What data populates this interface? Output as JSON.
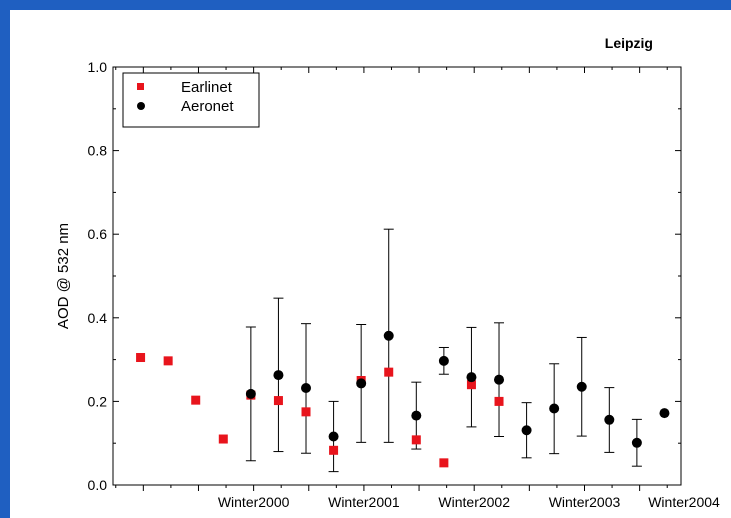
{
  "background_color": "#1f5fc1",
  "chart_data": {
    "type": "scatter",
    "title": "Leipzig",
    "xlabel": "",
    "ylabel": "AOD @ 532 nm",
    "xlim": [
      0,
      10.3
    ],
    "ylim": [
      0.0,
      1.0
    ],
    "grid": false,
    "legend_position": "top-left",
    "x_ticks": [
      {
        "x": 2.55,
        "label": "Winter2000"
      },
      {
        "x": 4.55,
        "label": "Winter2001"
      },
      {
        "x": 6.55,
        "label": "Winter2002"
      },
      {
        "x": 8.55,
        "label": "Winter2003"
      },
      {
        "x": 10.55,
        "label": "Winter2004"
      }
    ],
    "y_ticks": [
      {
        "value": 0.0,
        "label": "0.0"
      },
      {
        "value": 0.2,
        "label": "0.2"
      },
      {
        "value": 0.4,
        "label": "0.4"
      },
      {
        "value": 0.6,
        "label": "0.6"
      },
      {
        "value": 0.8,
        "label": "0.8"
      },
      {
        "value": 1.0,
        "label": "1.0"
      }
    ],
    "series": [
      {
        "name": "Earlinet",
        "marker": "square",
        "color": "#e8141c",
        "points": [
          {
            "x": 0.5,
            "y": 0.305
          },
          {
            "x": 1.0,
            "y": 0.297
          },
          {
            "x": 1.5,
            "y": 0.203
          },
          {
            "x": 2.0,
            "y": 0.11
          },
          {
            "x": 2.5,
            "y": 0.215
          },
          {
            "x": 3.0,
            "y": 0.202
          },
          {
            "x": 3.5,
            "y": 0.175
          },
          {
            "x": 4.0,
            "y": 0.083
          },
          {
            "x": 4.5,
            "y": 0.25
          },
          {
            "x": 5.0,
            "y": 0.27
          },
          {
            "x": 5.5,
            "y": 0.108
          },
          {
            "x": 6.0,
            "y": 0.053
          },
          {
            "x": 6.5,
            "y": 0.24
          },
          {
            "x": 7.0,
            "y": 0.2
          }
        ]
      },
      {
        "name": "Aeronet",
        "marker": "circle",
        "color": "#000000",
        "points": [
          {
            "x": 2.5,
            "y": 0.218,
            "err_low": 0.058,
            "err_high": 0.378
          },
          {
            "x": 3.0,
            "y": 0.263,
            "err_low": 0.08,
            "err_high": 0.447
          },
          {
            "x": 3.5,
            "y": 0.232,
            "err_low": 0.076,
            "err_high": 0.386
          },
          {
            "x": 4.0,
            "y": 0.116,
            "err_low": 0.032,
            "err_high": 0.2
          },
          {
            "x": 4.5,
            "y": 0.243,
            "err_low": 0.102,
            "err_high": 0.384
          },
          {
            "x": 5.0,
            "y": 0.357,
            "err_low": 0.102,
            "err_high": 0.612
          },
          {
            "x": 5.5,
            "y": 0.166,
            "err_low": 0.086,
            "err_high": 0.246
          },
          {
            "x": 6.0,
            "y": 0.297,
            "err_low": 0.265,
            "err_high": 0.329
          },
          {
            "x": 6.5,
            "y": 0.258,
            "err_low": 0.139,
            "err_high": 0.377
          },
          {
            "x": 7.0,
            "y": 0.252,
            "err_low": 0.116,
            "err_high": 0.388
          },
          {
            "x": 7.5,
            "y": 0.131,
            "err_low": 0.065,
            "err_high": 0.197
          },
          {
            "x": 8.0,
            "y": 0.183,
            "err_low": 0.075,
            "err_high": 0.29
          },
          {
            "x": 8.5,
            "y": 0.235,
            "err_low": 0.117,
            "err_high": 0.353
          },
          {
            "x": 9.0,
            "y": 0.156,
            "err_low": 0.078,
            "err_high": 0.233
          },
          {
            "x": 9.5,
            "y": 0.101,
            "err_low": 0.045,
            "err_high": 0.157
          },
          {
            "x": 10.0,
            "y": 0.172
          }
        ]
      }
    ]
  }
}
